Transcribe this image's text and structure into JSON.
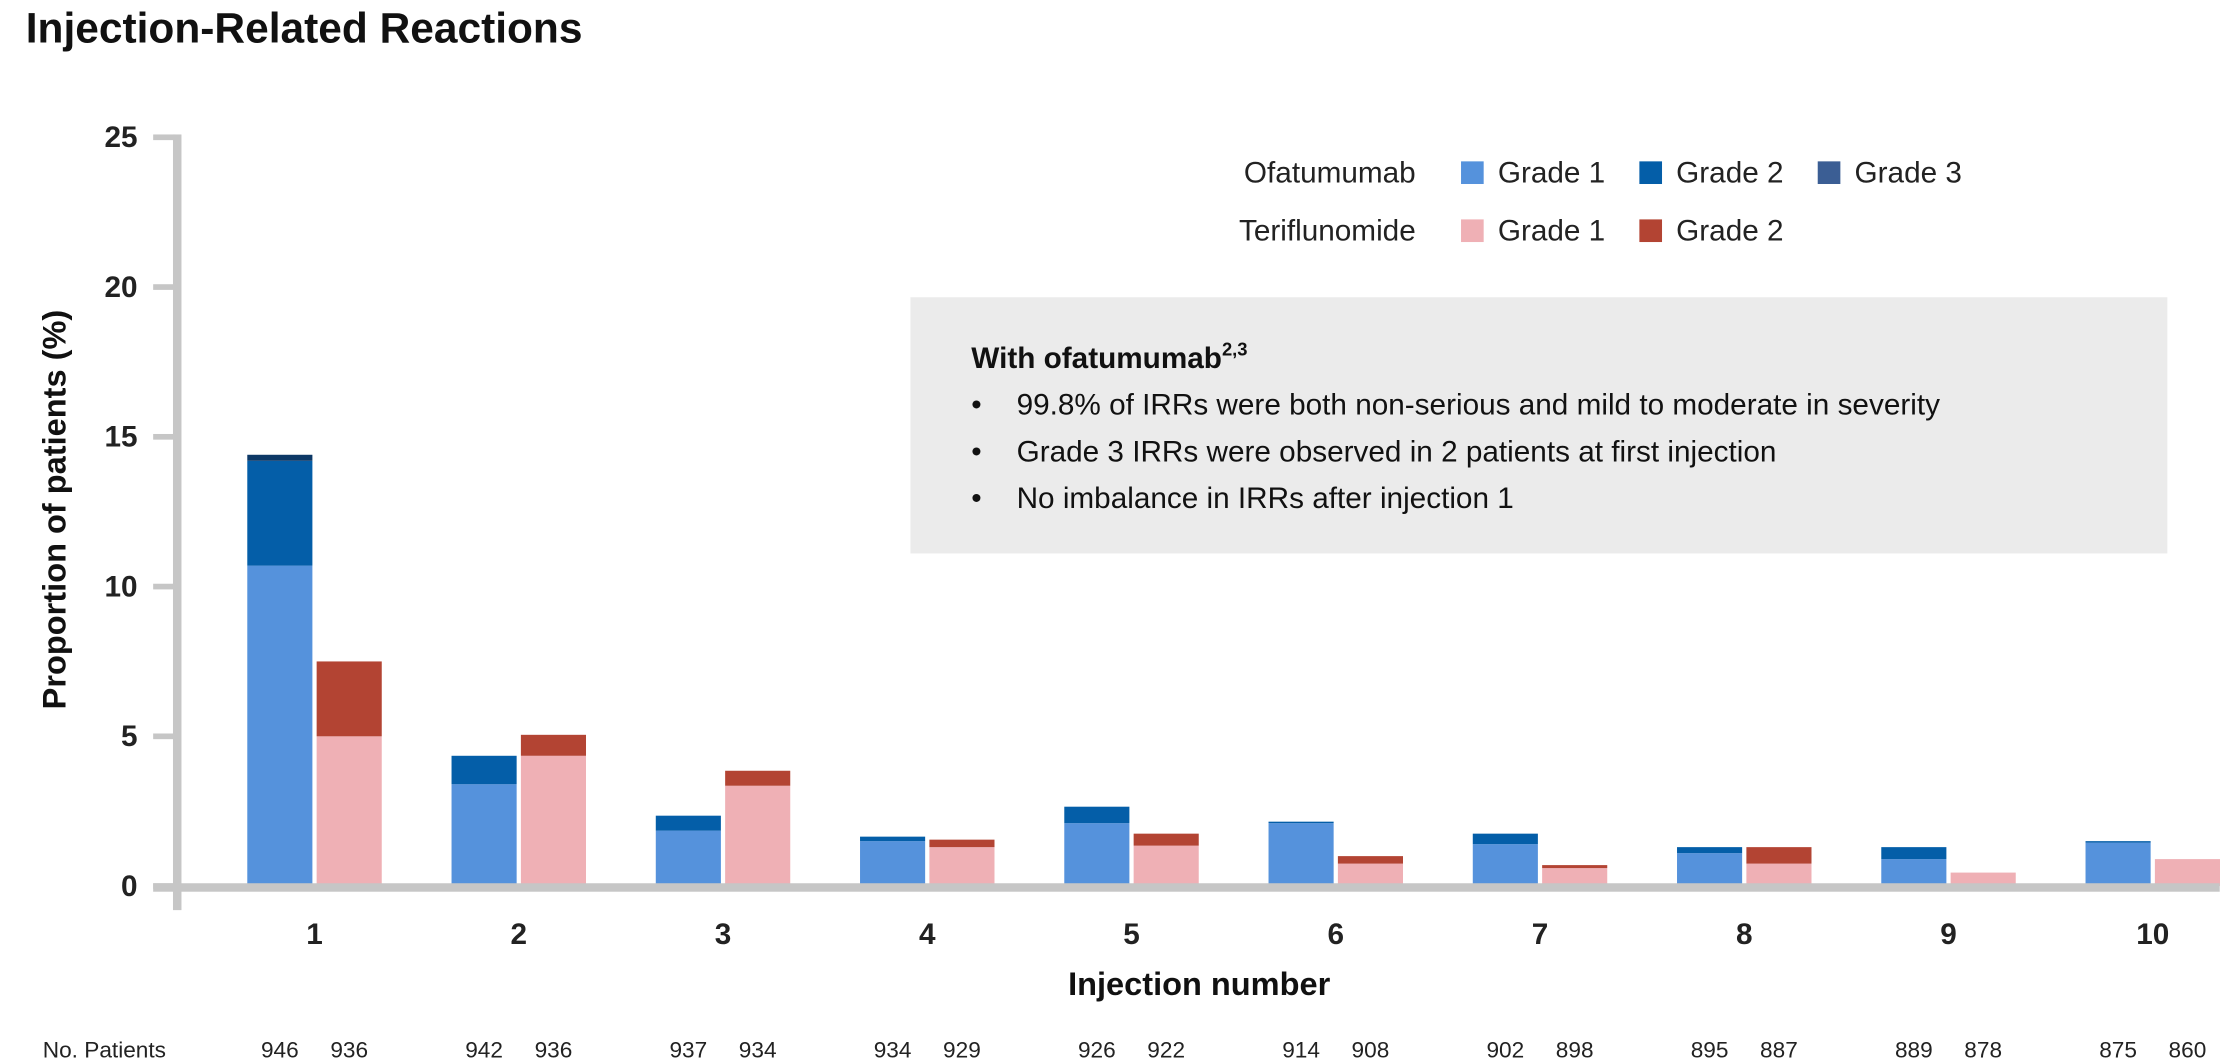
{
  "title": "Injection-Related Reactions",
  "chart_data": {
    "type": "bar",
    "stacked": true,
    "title": "Injection-Related Reactions",
    "xlabel": "Injection number",
    "ylabel": "Proportion of patients (%)",
    "ylim": [
      0,
      25
    ],
    "yticks": [
      0,
      5,
      10,
      15,
      20,
      25
    ],
    "categories": [
      "1",
      "2",
      "3",
      "4",
      "5",
      "6",
      "7",
      "8",
      "9",
      "10"
    ],
    "groups": [
      {
        "name": "Ofatumumab",
        "series": [
          {
            "name": "Grade 1",
            "color": "#5592dc",
            "values": [
              10.7,
              3.4,
              1.85,
              1.5,
              2.1,
              2.1,
              1.4,
              1.1,
              0.9,
              1.45
            ]
          },
          {
            "name": "Grade 2",
            "color": "#045ea8",
            "values": [
              3.5,
              0.95,
              0.5,
              0.15,
              0.55,
              0.05,
              0.35,
              0.2,
              0.4,
              0.05
            ]
          },
          {
            "name": "Grade 3",
            "color": "#0d3866",
            "legend_color": "#3b5e94",
            "values": [
              0.2,
              0,
              0,
              0,
              0,
              0,
              0,
              0,
              0,
              0
            ]
          }
        ]
      },
      {
        "name": "Teriflunomide",
        "series": [
          {
            "name": "Grade 1",
            "color": "#efb0b5",
            "values": [
              5.0,
              4.35,
              3.35,
              1.3,
              1.35,
              0.75,
              0.6,
              0.75,
              0.45,
              0.9
            ]
          },
          {
            "name": "Grade 2",
            "color": "#b34433",
            "values": [
              2.5,
              0.7,
              0.5,
              0.25,
              0.4,
              0.25,
              0.1,
              0.55,
              0,
              0
            ]
          }
        ]
      }
    ],
    "legend_placement": "top-right",
    "no_patients_label": "No. Patients",
    "no_patients": {
      "Ofatumumab": [
        "946",
        "942",
        "937",
        "934",
        "926",
        "914",
        "902",
        "895",
        "889",
        "875"
      ],
      "Teriflunomide": [
        "936",
        "936",
        "934",
        "929",
        "922",
        "908",
        "898",
        "887",
        "878",
        "860"
      ]
    },
    "annotation": {
      "heading": "With ofatumumab",
      "heading_sup": "2,3",
      "bullet": "•",
      "bullets": [
        "99.8% of IRRs were both non-serious and mild to moderate in severity",
        "Grade 3 IRRs were observed in 2 patients at first injection",
        "No imbalance in IRRs after injection 1"
      ]
    }
  }
}
